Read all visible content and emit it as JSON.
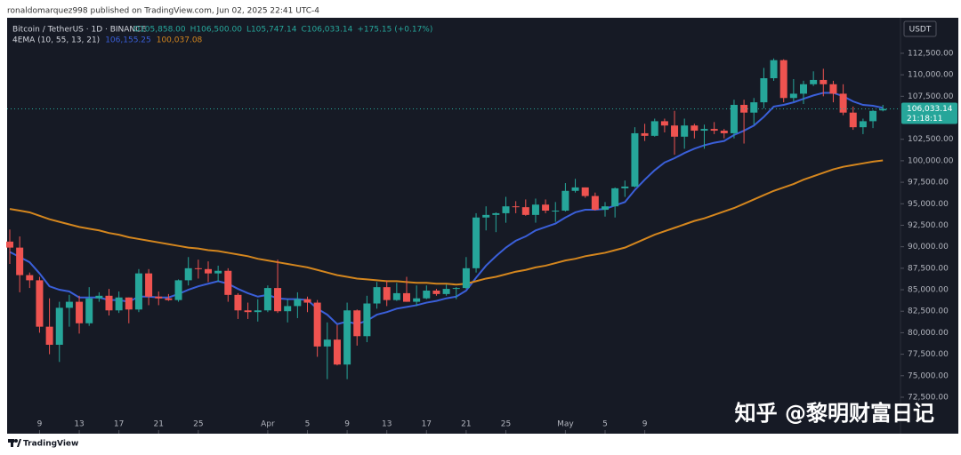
{
  "chart_data": {
    "type": "candlestick",
    "byline": "ronaldomarquez998 published on TradingView.com, Jun 02, 2025 22:41 UTC-4",
    "symbol": "Bitcoin / TetherUS · 1D · BINANCE",
    "legend_ohlc": [
      "O105,858.00",
      "H106,500.00",
      "L105,747.14",
      "C106,033.14",
      "+175.15 (+0.17%)"
    ],
    "indicator": "4EMA (10, 55, 13, 21)",
    "currency": "USDT",
    "last_price": 106033.14,
    "last_price_label": "106,033.14",
    "countdown": "21:18:11",
    "watermark": "知乎 @黎明财富日记",
    "brand": "TradingView",
    "up_color": "#26a69a",
    "down_color": "#ef5350",
    "ylim": [
      68570,
      116630
    ],
    "yticks": [
      {
        "value": 112500,
        "label": "112,500.00"
      },
      {
        "value": 110000,
        "label": "110,000.00"
      },
      {
        "value": 107500,
        "label": "107,500.00"
      },
      {
        "value": 102500,
        "label": "102,500.00"
      },
      {
        "value": 100000,
        "label": "100,000.00"
      },
      {
        "value": 97500,
        "label": "97,500.00"
      },
      {
        "value": 95000,
        "label": "95,000.00"
      },
      {
        "value": 92500,
        "label": "92,500.00"
      },
      {
        "value": 90000,
        "label": "90,000.00"
      },
      {
        "value": 87500,
        "label": "87,500.00"
      },
      {
        "value": 85000,
        "label": "85,000.00"
      },
      {
        "value": 82500,
        "label": "82,500.00"
      },
      {
        "value": 80000,
        "label": "80,000.00"
      },
      {
        "value": 77500,
        "label": "77,500.00"
      },
      {
        "value": 75000,
        "label": "75,000.00"
      },
      {
        "value": 72500,
        "label": "72,500.00"
      }
    ],
    "xticks": [
      {
        "value": 3,
        "label": "9"
      },
      {
        "value": 7,
        "label": "13"
      },
      {
        "value": 11,
        "label": "17"
      },
      {
        "value": 15,
        "label": "21"
      },
      {
        "value": 19,
        "label": "25"
      },
      {
        "value": 26,
        "label": "Apr"
      },
      {
        "value": 30,
        "label": "5"
      },
      {
        "value": 34,
        "label": "9"
      },
      {
        "value": 38,
        "label": "13"
      },
      {
        "value": 42,
        "label": "17"
      },
      {
        "value": 46,
        "label": "21"
      },
      {
        "value": 50,
        "label": "25"
      },
      {
        "value": 56,
        "label": "May"
      },
      {
        "value": 60,
        "label": "5"
      },
      {
        "value": 64,
        "label": "9"
      }
    ],
    "open": [
      90600,
      89900,
      86700,
      86100,
      80700,
      78600,
      82900,
      83600,
      81100,
      84000,
      84300,
      82600,
      84100,
      82700,
      86900,
      84200,
      84000,
      83800,
      86100,
      87500,
      87400,
      86900,
      87200,
      84400,
      82600,
      82400,
      82600,
      85200,
      82500,
      83100,
      83900,
      83500,
      78400,
      79200,
      76300,
      82600,
      79600,
      83400,
      85300,
      83800,
      84600,
      83600,
      84000,
      84900,
      84500,
      85100,
      85200,
      87500,
      93400,
      93700,
      93900,
      94700,
      94600,
      93700,
      94900,
      94200,
      94200,
      96500,
      96900,
      95900,
      94300,
      94700,
      96800,
      97000,
      103200,
      102900,
      104600,
      104100,
      102800,
      104100,
      103500,
      103700,
      103500,
      103200,
      106500,
      105600,
      106800,
      109600,
      111700,
      107300,
      107800,
      108900,
      109400,
      108900,
      107800,
      105600,
      103900,
      104600,
      105858
    ],
    "high": [
      92000,
      91200,
      87000,
      86500,
      84000,
      83600,
      84400,
      84300,
      85300,
      84700,
      85100,
      84800,
      84100,
      87400,
      87400,
      84800,
      84500,
      86200,
      88800,
      88500,
      88300,
      87800,
      87500,
      84600,
      83500,
      83900,
      85500,
      88500,
      83900,
      84700,
      84200,
      83800,
      81200,
      80900,
      83500,
      82700,
      84300,
      85900,
      86100,
      85800,
      86500,
      85500,
      85500,
      85100,
      85600,
      85300,
      88800,
      93900,
      94700,
      94000,
      95800,
      95300,
      95500,
      95600,
      95500,
      95200,
      97400,
      97900,
      96900,
      96300,
      95200,
      96900,
      97700,
      103900,
      104300,
      104900,
      104900,
      105800,
      104900,
      104300,
      104200,
      104500,
      103700,
      107100,
      107100,
      107300,
      110800,
      111900,
      111800,
      109500,
      109300,
      110400,
      110700,
      109300,
      108900,
      106300,
      104900,
      105900,
      106500
    ],
    "low": [
      88000,
      84700,
      85200,
      80000,
      77500,
      76600,
      80700,
      79900,
      80800,
      83600,
      82000,
      82300,
      81100,
      82400,
      83200,
      83200,
      83700,
      83600,
      85500,
      86300,
      85900,
      85900,
      83600,
      81600,
      81600,
      81300,
      82400,
      82300,
      81200,
      81700,
      82400,
      77200,
      74600,
      76200,
      74600,
      78500,
      78900,
      82800,
      83100,
      83700,
      83600,
      83100,
      83900,
      84300,
      84300,
      83900,
      85100,
      87000,
      91900,
      91700,
      92800,
      93900,
      93600,
      92800,
      93900,
      92900,
      94100,
      96300,
      95700,
      94200,
      93500,
      93400,
      95800,
      96900,
      102300,
      102800,
      103300,
      100700,
      101400,
      102600,
      101400,
      103100,
      102600,
      102600,
      102000,
      104200,
      106100,
      109300,
      106800,
      106900,
      106600,
      108700,
      107500,
      106800,
      105300,
      103600,
      103100,
      103800,
      105747.14
    ],
    "close": [
      89900,
      86700,
      86100,
      80700,
      78600,
      82900,
      83600,
      81100,
      84000,
      84300,
      82600,
      84100,
      82700,
      86900,
      84200,
      84000,
      83800,
      86100,
      87500,
      87400,
      86900,
      87200,
      84400,
      82600,
      82400,
      82600,
      85200,
      82500,
      83100,
      83900,
      83500,
      78400,
      79200,
      76300,
      82600,
      79600,
      83400,
      85300,
      83800,
      84600,
      83600,
      84000,
      84900,
      84500,
      85100,
      85200,
      87500,
      93400,
      93700,
      93900,
      94700,
      94600,
      93700,
      94900,
      94200,
      94200,
      96500,
      96900,
      95900,
      94300,
      94700,
      96800,
      97000,
      103200,
      102900,
      104600,
      104100,
      102800,
      104100,
      103500,
      103700,
      103500,
      103200,
      106500,
      105600,
      106800,
      109600,
      111700,
      107300,
      107800,
      108900,
      109400,
      108900,
      107800,
      105600,
      103900,
      104600,
      105800,
      106033.14
    ],
    "series": [
      {
        "color": "#3a5fd9",
        "last_value_label": "106,155.25",
        "values": [
          89400,
          88800,
          88200,
          86900,
          85400,
          85000,
          84800,
          84100,
          84100,
          84100,
          83800,
          83800,
          83600,
          84200,
          84200,
          84100,
          84100,
          84500,
          85000,
          85400,
          85700,
          86000,
          85700,
          85100,
          84600,
          84200,
          84400,
          84000,
          83900,
          83900,
          83800,
          82800,
          82100,
          81000,
          81300,
          81000,
          81400,
          82100,
          82400,
          82800,
          83000,
          83200,
          83500,
          83700,
          84000,
          84200,
          84900,
          86400,
          87800,
          88900,
          89900,
          90700,
          91200,
          91900,
          92300,
          92700,
          93400,
          94000,
          94300,
          94300,
          94400,
          94800,
          95200,
          96600,
          97800,
          98900,
          99800,
          100300,
          100900,
          101400,
          101800,
          102100,
          102300,
          103000,
          103500,
          104100,
          105100,
          106300,
          106500,
          106800,
          107200,
          107600,
          107900,
          107900,
          107500,
          106900,
          106500,
          106400,
          106155.25
        ]
      },
      {
        "color": "#d4861e",
        "last_value_label": "100,037.08",
        "values": [
          94400,
          94200,
          94000,
          93600,
          93200,
          92900,
          92600,
          92300,
          92100,
          91900,
          91600,
          91400,
          91100,
          90900,
          90700,
          90500,
          90300,
          90100,
          89900,
          89800,
          89600,
          89500,
          89300,
          89100,
          88900,
          88600,
          88400,
          88200,
          88000,
          87800,
          87600,
          87300,
          87000,
          86700,
          86500,
          86300,
          86200,
          86100,
          86000,
          86000,
          85900,
          85800,
          85800,
          85700,
          85700,
          85600,
          85700,
          86000,
          86300,
          86500,
          86800,
          87100,
          87300,
          87600,
          87800,
          88100,
          88400,
          88600,
          88900,
          89100,
          89300,
          89600,
          89900,
          90400,
          90900,
          91400,
          91800,
          92200,
          92600,
          93000,
          93300,
          93700,
          94100,
          94500,
          95000,
          95500,
          96000,
          96500,
          96900,
          97300,
          97800,
          98200,
          98600,
          99000,
          99300,
          99500,
          99700,
          99900,
          100037.08
        ]
      }
    ]
  }
}
